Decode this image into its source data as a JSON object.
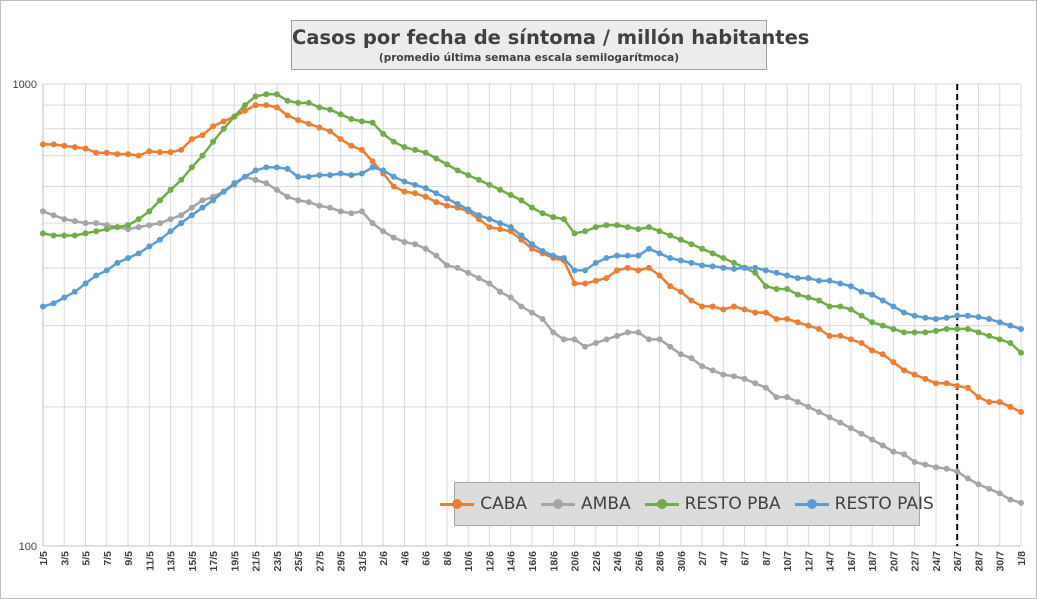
{
  "title": "Casos por fecha de síntoma / millón habitantes",
  "subtitle": "(promedio última semana escala semilogarítmoca)",
  "chart_data": {
    "type": "line",
    "title": "Casos por fecha de síntoma / millón habitantes",
    "subtitle": "(promedio última semana escala semilogarítmoca)",
    "yscale": "log",
    "ylim": [
      100,
      1000
    ],
    "yticks": [
      "100",
      "1000"
    ],
    "grid": true,
    "legend_position": "bottom-right",
    "vertical_marker_x": "26/7",
    "categories": [
      "1/5",
      "2/5",
      "3/5",
      "4/5",
      "5/5",
      "6/5",
      "7/5",
      "8/5",
      "9/5",
      "10/5",
      "11/5",
      "12/5",
      "13/5",
      "14/5",
      "15/5",
      "16/5",
      "17/5",
      "18/5",
      "19/5",
      "20/5",
      "21/5",
      "22/5",
      "23/5",
      "24/5",
      "25/5",
      "26/5",
      "27/5",
      "28/5",
      "29/5",
      "30/5",
      "31/5",
      "1/6",
      "2/6",
      "3/6",
      "4/6",
      "5/6",
      "6/6",
      "7/6",
      "8/6",
      "9/6",
      "10/6",
      "11/6",
      "12/6",
      "13/6",
      "14/6",
      "15/6",
      "16/6",
      "17/6",
      "18/6",
      "19/6",
      "20/6",
      "21/6",
      "22/6",
      "23/6",
      "24/6",
      "25/6",
      "26/6",
      "27/6",
      "28/6",
      "29/6",
      "30/6",
      "1/7",
      "2/7",
      "3/7",
      "4/7",
      "5/7",
      "6/7",
      "7/7",
      "8/7",
      "9/7",
      "10/7",
      "11/7",
      "12/7",
      "13/7",
      "14/7",
      "15/7",
      "16/7",
      "17/7",
      "18/7",
      "19/7",
      "20/7",
      "21/7",
      "22/7",
      "23/7",
      "24/7",
      "25/7",
      "26/7",
      "27/7",
      "28/7",
      "29/7",
      "30/7",
      "31/7",
      "1/8"
    ],
    "tick_labels": [
      "1/5",
      "3/5",
      "5/5",
      "7/5",
      "9/5",
      "11/5",
      "13/5",
      "15/5",
      "17/5",
      "19/5",
      "21/5",
      "23/5",
      "25/5",
      "27/5",
      "29/5",
      "31/5",
      "2/6",
      "4/6",
      "6/6",
      "8/6",
      "10/6",
      "12/6",
      "14/6",
      "16/6",
      "18/6",
      "20/6",
      "22/6",
      "24/6",
      "26/6",
      "28/6",
      "30/6",
      "2/7",
      "4/7",
      "6/7",
      "8/7",
      "10/7",
      "12/7",
      "14/7",
      "16/7",
      "18/7",
      "20/7",
      "22/7",
      "24/7",
      "26/7",
      "28/7",
      "30/7",
      "1/8"
    ],
    "series": [
      {
        "name": "CABA",
        "color": "#ed7d31",
        "values": [
          740,
          740,
          735,
          730,
          725,
          710,
          710,
          705,
          705,
          700,
          715,
          712,
          712,
          720,
          760,
          775,
          810,
          830,
          850,
          875,
          900,
          900,
          890,
          855,
          835,
          820,
          805,
          790,
          760,
          735,
          720,
          680,
          640,
          600,
          585,
          580,
          570,
          555,
          545,
          540,
          530,
          510,
          490,
          485,
          480,
          460,
          440,
          430,
          420,
          415,
          370,
          370,
          375,
          380,
          395,
          400,
          395,
          400,
          385,
          365,
          355,
          340,
          330,
          330,
          325,
          330,
          325,
          320,
          320,
          310,
          310,
          305,
          300,
          295,
          285,
          285,
          280,
          275,
          265,
          260,
          250,
          240,
          235,
          230,
          225,
          225,
          222,
          220,
          210,
          205,
          205,
          200,
          195
        ]
      },
      {
        "name": "AMBA",
        "color": "#a5a5a5",
        "values": [
          530,
          520,
          510,
          505,
          500,
          500,
          495,
          490,
          485,
          490,
          495,
          500,
          510,
          520,
          540,
          560,
          570,
          585,
          605,
          630,
          620,
          610,
          590,
          570,
          560,
          555,
          545,
          540,
          530,
          525,
          530,
          500,
          480,
          465,
          455,
          450,
          440,
          425,
          405,
          400,
          390,
          380,
          370,
          355,
          345,
          330,
          320,
          310,
          290,
          280,
          280,
          270,
          275,
          280,
          285,
          290,
          290,
          280,
          280,
          270,
          260,
          255,
          245,
          240,
          235,
          233,
          230,
          225,
          220,
          210,
          210,
          205,
          200,
          195,
          190,
          185,
          180,
          175,
          170,
          165,
          160,
          158,
          152,
          150,
          148,
          147,
          145,
          140,
          136,
          133,
          130,
          126,
          124
        ]
      },
      {
        "name": "RESTO PBA",
        "color": "#70ad47",
        "values": [
          475,
          470,
          470,
          470,
          475,
          480,
          485,
          490,
          495,
          510,
          530,
          560,
          590,
          620,
          660,
          700,
          750,
          800,
          850,
          900,
          940,
          950,
          950,
          920,
          910,
          910,
          890,
          880,
          860,
          840,
          830,
          825,
          780,
          750,
          730,
          720,
          710,
          690,
          670,
          650,
          635,
          620,
          605,
          590,
          575,
          560,
          540,
          525,
          515,
          510,
          475,
          480,
          490,
          495,
          495,
          490,
          485,
          490,
          480,
          470,
          460,
          450,
          440,
          430,
          420,
          410,
          400,
          390,
          365,
          360,
          360,
          350,
          345,
          340,
          330,
          330,
          325,
          315,
          305,
          300,
          295,
          290,
          290,
          290,
          292,
          295,
          295,
          295,
          290,
          285,
          280,
          275,
          262
        ]
      },
      {
        "name": "RESTO PAIS",
        "color": "#5b9bd5",
        "values": [
          330,
          335,
          345,
          355,
          370,
          385,
          395,
          410,
          420,
          430,
          445,
          460,
          480,
          500,
          520,
          540,
          560,
          585,
          610,
          630,
          650,
          660,
          660,
          655,
          630,
          630,
          635,
          635,
          640,
          635,
          640,
          660,
          650,
          630,
          615,
          605,
          595,
          580,
          565,
          550,
          535,
          520,
          510,
          500,
          490,
          470,
          450,
          435,
          425,
          420,
          395,
          395,
          410,
          420,
          425,
          425,
          425,
          440,
          430,
          420,
          415,
          410,
          405,
          403,
          400,
          398,
          400,
          400,
          395,
          390,
          385,
          380,
          380,
          375,
          375,
          370,
          365,
          355,
          350,
          340,
          330,
          320,
          315,
          312,
          310,
          312,
          315,
          315,
          313,
          310,
          305,
          300,
          295
        ]
      }
    ]
  }
}
